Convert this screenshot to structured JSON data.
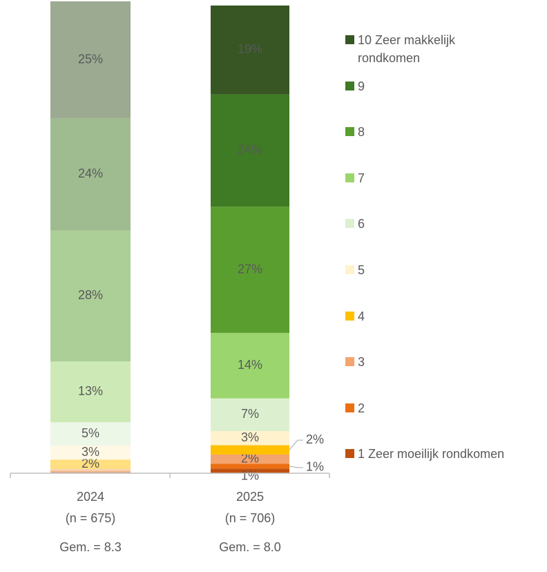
{
  "chart_data": {
    "type": "stacked_bar",
    "categories": [
      "2024",
      "2025"
    ],
    "category_notes": [
      "(n = 675)",
      "(n = 706)"
    ],
    "averages": [
      "Gem. = 8.3",
      "Gem. = 8.0"
    ],
    "ylim": [
      0,
      100
    ],
    "series": [
      {
        "name": "1 Zeer moeilijk rondkomen",
        "color": "#c0500f",
        "values": [
          0.3,
          1
        ],
        "value_labels": [
          null,
          "1%"
        ]
      },
      {
        "name": "2",
        "color": "#ec6f12",
        "values": [
          0.2,
          1
        ],
        "value_labels": [
          null,
          "1%"
        ]
      },
      {
        "name": "3",
        "color": "#f4a46e",
        "values": [
          0.4,
          2
        ],
        "value_labels": [
          null,
          "2%"
        ]
      },
      {
        "name": "4",
        "color": "#ffc000",
        "values": [
          2,
          2
        ],
        "value_labels": [
          "2%",
          "2%"
        ]
      },
      {
        "name": "5",
        "color": "#fff2cc",
        "values": [
          3,
          3
        ],
        "value_labels": [
          "3%",
          "3%"
        ]
      },
      {
        "name": "6",
        "color": "#dcf0d0",
        "values": [
          5,
          7
        ],
        "value_labels": [
          "5%",
          "7%"
        ]
      },
      {
        "name": "7",
        "color": "#9bd56d",
        "values": [
          13,
          14
        ],
        "value_labels": [
          "13%",
          "14%"
        ]
      },
      {
        "name": "8",
        "color": "#5a9e2f",
        "values": [
          28,
          27
        ],
        "value_labels": [
          "28%",
          "27%"
        ]
      },
      {
        "name": "9",
        "color": "#3f7a24",
        "values": [
          24,
          24
        ],
        "value_labels": [
          "24%",
          "24%"
        ]
      },
      {
        "name": "10 Zeer makkelijk rondkomen",
        "color": "#375623",
        "values": [
          25,
          19
        ],
        "value_labels": [
          "25%",
          "19%"
        ]
      }
    ]
  }
}
